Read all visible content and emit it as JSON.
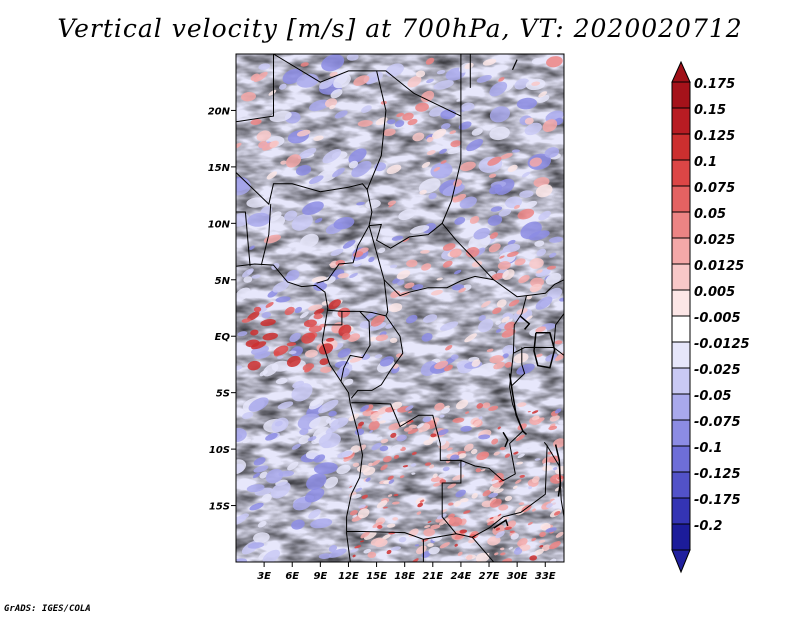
{
  "title": "Vertical velocity [m/s] at 700hPa, VT: 2020020712",
  "credit": "GrADS: IGES/COLA",
  "map": {
    "region": "Central Africa",
    "lon_range": [
      0,
      35
    ],
    "lat_range": [
      -20,
      25
    ],
    "lat_ticks": [
      {
        "value": 20,
        "label": "20N"
      },
      {
        "value": 15,
        "label": "15N"
      },
      {
        "value": 10,
        "label": "10N"
      },
      {
        "value": 5,
        "label": "5N"
      },
      {
        "value": 0,
        "label": "EQ"
      },
      {
        "value": -5,
        "label": "5S"
      },
      {
        "value": -10,
        "label": "10S"
      },
      {
        "value": -15,
        "label": "15S"
      }
    ],
    "lon_ticks": [
      {
        "value": 3,
        "label": "3E"
      },
      {
        "value": 6,
        "label": "6E"
      },
      {
        "value": 9,
        "label": "9E"
      },
      {
        "value": 12,
        "label": "12E"
      },
      {
        "value": 15,
        "label": "15E"
      },
      {
        "value": 18,
        "label": "18E"
      },
      {
        "value": 21,
        "label": "21E"
      },
      {
        "value": 24,
        "label": "24E"
      },
      {
        "value": 27,
        "label": "27E"
      },
      {
        "value": 30,
        "label": "30E"
      },
      {
        "value": 33,
        "label": "33E"
      }
    ]
  },
  "colorbar": {
    "levels": [
      {
        "label": "0.175",
        "color": "#a5121a"
      },
      {
        "label": "0.15",
        "color": "#b81c23"
      },
      {
        "label": "0.125",
        "color": "#cc2f2f"
      },
      {
        "label": "0.1",
        "color": "#dc4646"
      },
      {
        "label": "0.075",
        "color": "#e46262"
      },
      {
        "label": "0.05",
        "color": "#ec8484"
      },
      {
        "label": "0.025",
        "color": "#f4a8a8"
      },
      {
        "label": "0.0125",
        "color": "#f8c8c8"
      },
      {
        "label": "0.005",
        "color": "#fce6e6"
      },
      {
        "label": "-0.005",
        "color": "#ffffff"
      },
      {
        "label": "-0.0125",
        "color": "#e6e6fa"
      },
      {
        "label": "-0.025",
        "color": "#c9c9f4"
      },
      {
        "label": "-0.05",
        "color": "#a9a9ec"
      },
      {
        "label": "-0.075",
        "color": "#8c8ce4"
      },
      {
        "label": "-0.1",
        "color": "#6e6ed8"
      },
      {
        "label": "-0.125",
        "color": "#5252c8"
      },
      {
        "label": "-0.175",
        "color": "#3434b4"
      },
      {
        "label": "-0.2",
        "color": "#1c1c9a"
      }
    ],
    "top_color": "#a01018",
    "bottom_color": "#20209e"
  }
}
